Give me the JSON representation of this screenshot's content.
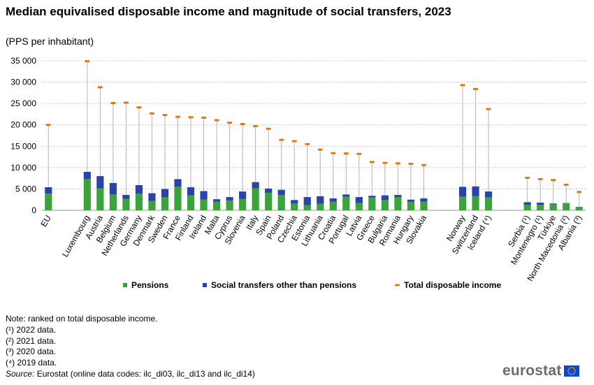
{
  "title": "Median equivalised disposable income and magnitude of social transfers, 2023",
  "subtitle": "(PPS per inhabitant)",
  "chart_data": {
    "type": "bar",
    "stacked": true,
    "ylim": [
      0,
      35000
    ],
    "yticks": [
      0,
      5000,
      10000,
      15000,
      20000,
      25000,
      30000,
      35000
    ],
    "ytick_labels": [
      "0",
      "5 000",
      "10 000",
      "15 000",
      "20 000",
      "25 000",
      "30 000",
      "35 000"
    ],
    "grid": true,
    "legend_position": "bottom",
    "groups": [
      {
        "categories": [
          "EU"
        ]
      },
      {
        "categories": [
          "Luxembourg",
          "Austria",
          "Belgium",
          "Netherlands",
          "Germany",
          "Denmark",
          "Sweden",
          "France",
          "Finland",
          "Ireland",
          "Malta",
          "Cyprus",
          "Slovenia",
          "Italy",
          "Spain",
          "Poland",
          "Czechia",
          "Estonia",
          "Lithuania",
          "Croatia",
          "Portugal",
          "Latvia",
          "Greece",
          "Bulgaria",
          "Romania",
          "Hungary",
          "Slovakia"
        ]
      },
      {
        "categories": [
          "Norway",
          "Switzerland",
          "Iceland (⁴)"
        ]
      },
      {
        "categories": [
          "Serbia (¹)",
          "Montenegro (¹)",
          "Türkiye",
          "North Macedonia (²)",
          "Albania (³)"
        ]
      }
    ],
    "categories": [
      "EU",
      "Luxembourg",
      "Austria",
      "Belgium",
      "Netherlands",
      "Germany",
      "Denmark",
      "Sweden",
      "France",
      "Finland",
      "Ireland",
      "Malta",
      "Cyprus",
      "Slovenia",
      "Italy",
      "Spain",
      "Poland",
      "Czechia",
      "Estonia",
      "Lithuania",
      "Croatia",
      "Portugal",
      "Latvia",
      "Greece",
      "Bulgaria",
      "Romania",
      "Hungary",
      "Slovakia",
      "Norway",
      "Switzerland",
      "Iceland (⁴)",
      "Serbia (¹)",
      "Montenegro (¹)",
      "Türkiye",
      "North Macedonia (²)",
      "Albania (³)"
    ],
    "series": [
      {
        "name": "Pensions",
        "color": "#3aa33a",
        "values": [
          3900,
          7300,
          5100,
          3700,
          2700,
          3900,
          2200,
          3100,
          5500,
          3500,
          2500,
          2000,
          2300,
          2700,
          5100,
          4100,
          3600,
          1600,
          1200,
          1500,
          2000,
          3200,
          1700,
          3000,
          2400,
          3100,
          2000,
          2000,
          3200,
          3300,
          3000,
          1300,
          1300,
          1400,
          1600,
          700
        ]
      },
      {
        "name": "Social transfers other than pensions",
        "color": "#2a43a8",
        "values": [
          1500,
          1700,
          2900,
          2700,
          900,
          2000,
          1800,
          1900,
          1800,
          1900,
          2000,
          600,
          800,
          1700,
          1500,
          1000,
          1200,
          800,
          1900,
          1800,
          800,
          500,
          1400,
          400,
          1100,
          500,
          500,
          800,
          2300,
          2300,
          1400,
          600,
          500,
          200,
          100,
          100
        ]
      },
      {
        "name": "Total disposable income",
        "color": "#e07b0a",
        "kind": "marker",
        "values": [
          20000,
          34900,
          28800,
          25100,
          25200,
          24100,
          22700,
          22300,
          21900,
          21800,
          21700,
          21100,
          20500,
          20200,
          19700,
          19100,
          16500,
          16200,
          15500,
          14200,
          13400,
          13300,
          13200,
          11300,
          11100,
          11000,
          10900,
          10600,
          29300,
          28400,
          23700,
          7600,
          7300,
          7100,
          6000,
          4300
        ]
      }
    ]
  },
  "notes": {
    "line1": "Note: ranked on total disposable income.",
    "line2": "(¹) 2022 data.",
    "line3": "(²) 2021 data.",
    "line4": "(³) 2020 data.",
    "line5": "(⁴) 2019 data.",
    "source_label": "Source:",
    "source_text": " Eurostat (online data codes: ilc_di03, ilc_di13 and ilc_di14)"
  },
  "logo": {
    "text": "eurostat",
    "flag_color": "#0e47cb",
    "star_color": "#ffdd00"
  }
}
